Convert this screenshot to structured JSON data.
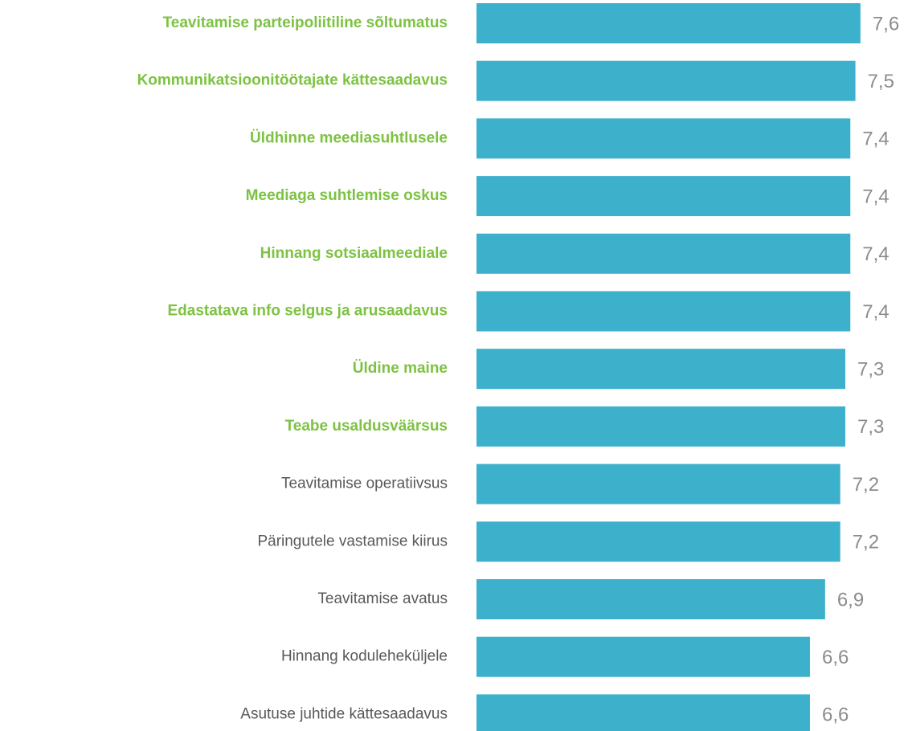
{
  "chart_data": {
    "type": "barh",
    "categories": [
      "Teavitamise parteipoliitiline sõltumatus",
      "Kommunikatsioonitöötajate kättesaadavus",
      "Üldhinne meediasuhtlusele",
      "Meediaga suhtlemise oskus",
      "Hinnang sotsiaalmeediale",
      "Edastatava info selgus ja arusaadavus",
      "Üldine maine",
      "Teabe usaldusväärsus",
      "Teavitamise operatiivsus",
      "Päringutele vastamise kiirus",
      "Teavitamise avatus",
      "Hinnang koduleheküljele",
      "Asutuse juhtide kättesaadavus"
    ],
    "values": [
      7.6,
      7.5,
      7.4,
      7.4,
      7.4,
      7.4,
      7.3,
      7.3,
      7.2,
      7.2,
      6.9,
      6.6,
      6.6
    ],
    "value_labels": [
      "7,6",
      "7,5",
      "7,4",
      "7,4",
      "7,4",
      "7,4",
      "7,3",
      "7,3",
      "7,2",
      "7,2",
      "6,9",
      "6,6",
      "6,6"
    ],
    "color": "#3db0cc",
    "label_colors": [
      "#7dc242",
      "#7dc242",
      "#7dc242",
      "#7dc242",
      "#7dc242",
      "#7dc242",
      "#7dc242",
      "#7dc242",
      "#595959",
      "#595959",
      "#595959",
      "#595959",
      "#595959"
    ],
    "label_bold": [
      true,
      true,
      true,
      true,
      true,
      true,
      true,
      true,
      false,
      false,
      false,
      false,
      false
    ],
    "value_label_color": "#8c8c8c",
    "xlim": [
      0,
      8
    ]
  }
}
